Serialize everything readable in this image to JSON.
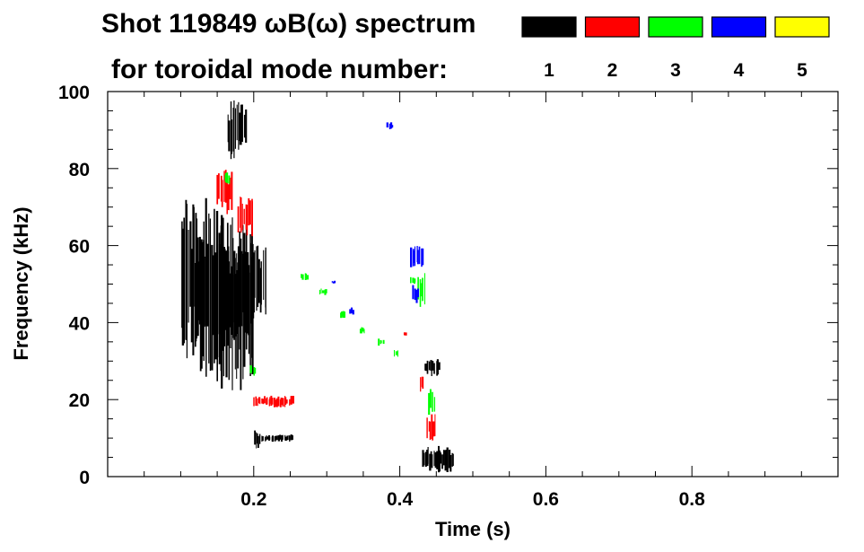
{
  "chart_data": {
    "type": "heatmap",
    "title_line1": "Shot 119849 ωB(ω) spectrum",
    "title_line2": "for toroidal mode number:",
    "xlabel": "Time (s)",
    "ylabel": "Frequency (kHz)",
    "xlim": [
      0.0,
      1.0
    ],
    "ylim": [
      0,
      100
    ],
    "x_ticks": [
      "0.2",
      "0.4",
      "0.6",
      "0.8"
    ],
    "x_tick_values": [
      0.2,
      0.4,
      0.6,
      0.8
    ],
    "y_ticks": [
      "0",
      "20",
      "40",
      "60",
      "80",
      "100"
    ],
    "y_tick_values": [
      0,
      20,
      40,
      60,
      80,
      100
    ],
    "legend": [
      {
        "label": "1",
        "color": "#000000"
      },
      {
        "label": "2",
        "color": "#ff0000"
      },
      {
        "label": "3",
        "color": "#00ff00"
      },
      {
        "label": "4",
        "color": "#0000ff"
      },
      {
        "label": "5",
        "color": "#ffff00"
      }
    ],
    "regions": [
      {
        "mode": 1,
        "t": [
          0.1,
          0.135
        ],
        "f": [
          30,
          74
        ]
      },
      {
        "mode": 1,
        "t": [
          0.12,
          0.165
        ],
        "f": [
          24,
          72
        ]
      },
      {
        "mode": 1,
        "t": [
          0.15,
          0.2
        ],
        "f": [
          22,
          68
        ]
      },
      {
        "mode": 1,
        "t": [
          0.165,
          0.2
        ],
        "f": [
          35,
          62
        ]
      },
      {
        "mode": 1,
        "t": [
          0.195,
          0.218
        ],
        "f": [
          42,
          60
        ]
      },
      {
        "mode": 1,
        "t": [
          0.163,
          0.185
        ],
        "f": [
          82,
          98
        ]
      },
      {
        "mode": 1,
        "t": [
          0.18,
          0.19
        ],
        "f": [
          85,
          97
        ]
      },
      {
        "mode": 1,
        "t": [
          0.2,
          0.21
        ],
        "f": [
          7,
          12
        ]
      },
      {
        "mode": 1,
        "t": [
          0.21,
          0.255
        ],
        "f": [
          9,
          11
        ]
      },
      {
        "mode": 1,
        "t": [
          0.433,
          0.455
        ],
        "f": [
          26,
          31
        ]
      },
      {
        "mode": 1,
        "t": [
          0.43,
          0.475
        ],
        "f": [
          1,
          8
        ]
      },
      {
        "mode": 2,
        "t": [
          0.15,
          0.17
        ],
        "f": [
          68,
          80
        ]
      },
      {
        "mode": 2,
        "t": [
          0.178,
          0.2
        ],
        "f": [
          62,
          73
        ]
      },
      {
        "mode": 2,
        "t": [
          0.2,
          0.255
        ],
        "f": [
          18,
          21
        ]
      },
      {
        "mode": 2,
        "t": [
          0.428,
          0.433
        ],
        "f": [
          22,
          26
        ]
      },
      {
        "mode": 2,
        "t": [
          0.437,
          0.45
        ],
        "f": [
          9,
          17
        ]
      },
      {
        "mode": 2,
        "t": [
          0.405,
          0.41
        ],
        "f": [
          36.5,
          37.5
        ]
      },
      {
        "mode": 3,
        "t": [
          0.16,
          0.167
        ],
        "f": [
          76,
          79
        ]
      },
      {
        "mode": 3,
        "t": [
          0.195,
          0.203
        ],
        "f": [
          26,
          29
        ]
      },
      {
        "mode": 3,
        "t": [
          0.265,
          0.275
        ],
        "f": [
          51,
          53
        ]
      },
      {
        "mode": 3,
        "t": [
          0.29,
          0.3
        ],
        "f": [
          47,
          49
        ]
      },
      {
        "mode": 3,
        "t": [
          0.318,
          0.325
        ],
        "f": [
          41,
          43
        ]
      },
      {
        "mode": 3,
        "t": [
          0.345,
          0.353
        ],
        "f": [
          37,
          39
        ]
      },
      {
        "mode": 3,
        "t": [
          0.37,
          0.378
        ],
        "f": [
          34,
          36
        ]
      },
      {
        "mode": 3,
        "t": [
          0.392,
          0.398
        ],
        "f": [
          31,
          33
        ]
      },
      {
        "mode": 3,
        "t": [
          0.425,
          0.435
        ],
        "f": [
          44,
          53
        ]
      },
      {
        "mode": 3,
        "t": [
          0.415,
          0.422
        ],
        "f": [
          50,
          52
        ]
      },
      {
        "mode": 3,
        "t": [
          0.44,
          0.448
        ],
        "f": [
          16,
          23
        ]
      },
      {
        "mode": 4,
        "t": [
          0.383,
          0.39
        ],
        "f": [
          90,
          92
        ]
      },
      {
        "mode": 4,
        "t": [
          0.415,
          0.432
        ],
        "f": [
          54,
          60
        ]
      },
      {
        "mode": 4,
        "t": [
          0.418,
          0.426
        ],
        "f": [
          45,
          50
        ]
      },
      {
        "mode": 4,
        "t": [
          0.307,
          0.312
        ],
        "f": [
          50,
          51
        ]
      },
      {
        "mode": 4,
        "t": [
          0.332,
          0.337
        ],
        "f": [
          42,
          44
        ]
      }
    ]
  }
}
